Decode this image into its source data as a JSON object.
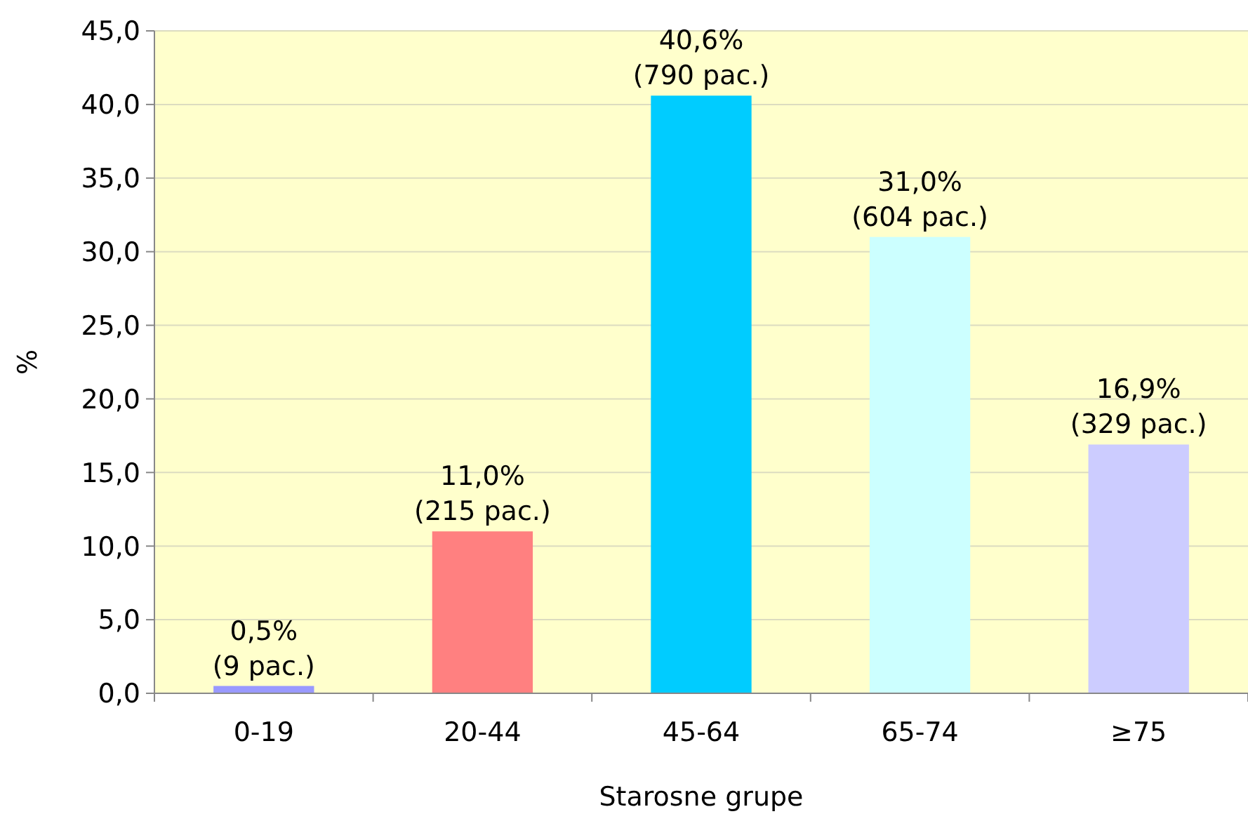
{
  "chart_data": {
    "type": "bar",
    "xlabel": "Starosne grupe",
    "ylabel": "%",
    "categories": [
      "0-19",
      "20-44",
      "45-64",
      "65-74",
      "≥75"
    ],
    "values": [
      0.5,
      11.0,
      40.6,
      31.0,
      16.9
    ],
    "colors": [
      "#9999ff",
      "#ff8080",
      "#00ccff",
      "#ccffff",
      "#ccccff"
    ],
    "value_labels": [
      "0,5%\n(9 pac.)",
      "11,0%\n(215 pac.)",
      "40,6%\n(790 pac.)",
      "31,0%\n(604 pac.)",
      "16,9%\n(329 pac.)"
    ],
    "ylim": [
      0,
      45
    ],
    "yticks": [
      {
        "value": 0,
        "label": "0,0"
      },
      {
        "value": 5,
        "label": "5,0"
      },
      {
        "value": 10,
        "label": "10,0"
      },
      {
        "value": 15,
        "label": "15,0"
      },
      {
        "value": 20,
        "label": "20,0"
      },
      {
        "value": 25,
        "label": "25,0"
      },
      {
        "value": 30,
        "label": "30,0"
      },
      {
        "value": 35,
        "label": "35,0"
      },
      {
        "value": 40,
        "label": "40,0"
      },
      {
        "value": 45,
        "label": "45,0"
      }
    ],
    "grid": "y"
  }
}
